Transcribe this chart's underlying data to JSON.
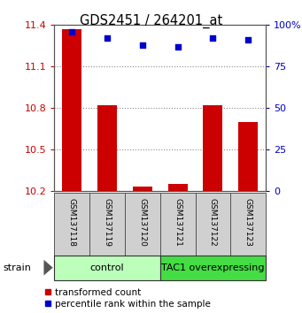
{
  "title": "GDS2451 / 264201_at",
  "samples": [
    "GSM137118",
    "GSM137119",
    "GSM137120",
    "GSM137121",
    "GSM137122",
    "GSM137123"
  ],
  "transformed_counts": [
    11.37,
    10.82,
    10.23,
    10.25,
    10.82,
    10.7
  ],
  "percentile_ranks": [
    96,
    92,
    88,
    87,
    92,
    91
  ],
  "ylim_left": [
    10.2,
    11.4
  ],
  "ylim_right": [
    0,
    100
  ],
  "yticks_left": [
    10.2,
    10.5,
    10.8,
    11.1,
    11.4
  ],
  "yticks_right": [
    0,
    25,
    50,
    75,
    100
  ],
  "ytick_labels_left": [
    "10.2",
    "10.5",
    "10.8",
    "11.1",
    "11.4"
  ],
  "ytick_labels_right": [
    "0",
    "25",
    "50",
    "75",
    "100%"
  ],
  "bar_color": "#cc0000",
  "dot_color": "#0000cc",
  "bar_bottom": 10.2,
  "groups": [
    {
      "label": "control",
      "samples": [
        0,
        1,
        2
      ],
      "color": "#bbffbb"
    },
    {
      "label": "TAC1 overexpressing",
      "samples": [
        3,
        4,
        5
      ],
      "color": "#44dd44"
    }
  ],
  "strain_label": "strain",
  "legend_items": [
    {
      "color": "#cc0000",
      "label": "transformed count"
    },
    {
      "color": "#0000cc",
      "label": "percentile rank within the sample"
    }
  ],
  "grid_color": "#888888",
  "tick_color_left": "#cc0000",
  "tick_color_right": "#0000cc",
  "figsize": [
    3.41,
    3.54
  ],
  "dpi": 100
}
